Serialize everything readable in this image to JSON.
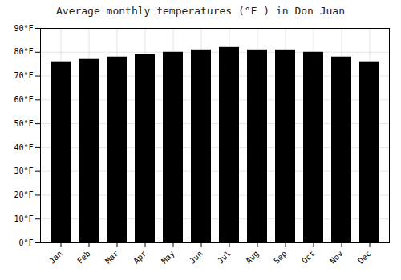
{
  "chart_data": {
    "type": "bar",
    "title": "Average monthly temperatures (°F ) in Don Juan",
    "categories": [
      "Jan",
      "Feb",
      "Mar",
      "Apr",
      "May",
      "Jun",
      "Jul",
      "Aug",
      "Sep",
      "Oct",
      "Nov",
      "Dec"
    ],
    "values": [
      76,
      77,
      78,
      79,
      80,
      81,
      82,
      81,
      81,
      80,
      78,
      76
    ],
    "ylim": [
      0,
      90
    ],
    "yticks": [
      {
        "value": 0,
        "label": "0°F"
      },
      {
        "value": 10,
        "label": "10°F"
      },
      {
        "value": 20,
        "label": "20°F"
      },
      {
        "value": 30,
        "label": "30°F"
      },
      {
        "value": 40,
        "label": "40°F"
      },
      {
        "value": 50,
        "label": "50°F"
      },
      {
        "value": 60,
        "label": "60°F"
      },
      {
        "value": 70,
        "label": "70°F"
      },
      {
        "value": 80,
        "label": "80°F"
      },
      {
        "value": 90,
        "label": "90°F"
      }
    ],
    "grid": true
  }
}
